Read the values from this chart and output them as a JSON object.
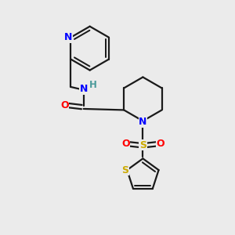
{
  "background_color": "#ebebeb",
  "bond_color": "#1a1a1a",
  "N_color": "#0000ff",
  "O_color": "#ff0000",
  "S_sulfonyl_color": "#ccaa00",
  "S_thiophene_color": "#ccaa00",
  "H_color": "#4a9a9a",
  "line_width": 1.6,
  "dbo": 0.09,
  "figsize": [
    3.0,
    3.0
  ],
  "dpi": 100,
  "xlim": [
    0,
    10
  ],
  "ylim": [
    0,
    10
  ]
}
